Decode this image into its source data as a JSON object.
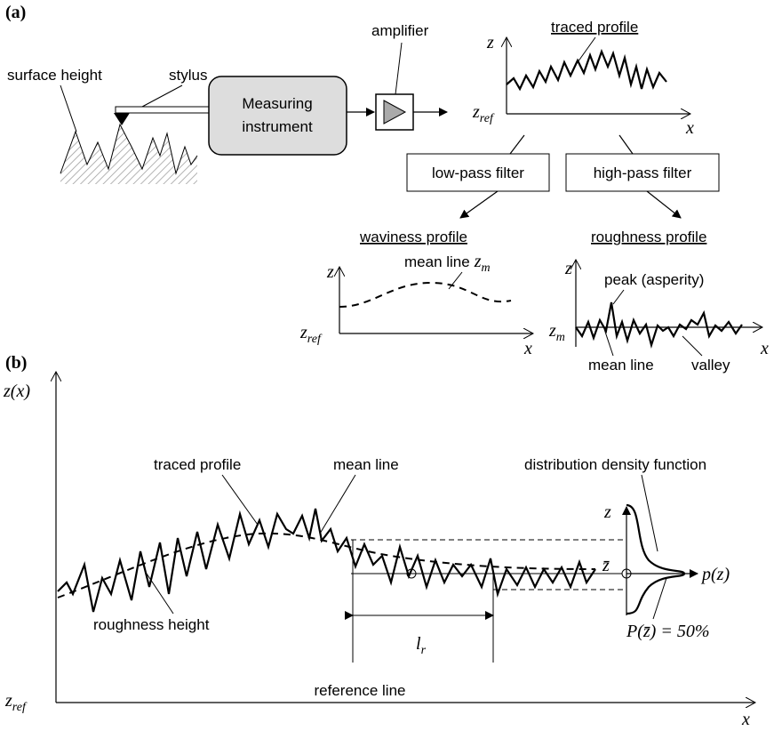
{
  "panel_a": {
    "label": "(a)",
    "surface_height": "surface height",
    "stylus": "stylus",
    "instrument": [
      "Measuring",
      "instrument"
    ],
    "amplifier": "amplifier",
    "traced_plot": {
      "title": "traced profile",
      "y_axis": "z",
      "origin": {
        "base": "z",
        "sub": "ref"
      },
      "x_axis": "x"
    },
    "low_pass": "low-pass filter",
    "high_pass": "high-pass filter",
    "waviness_plot": {
      "title": "waviness profile",
      "y_axis": "z",
      "origin": {
        "base": "z",
        "sub": "ref"
      },
      "x_axis": "x",
      "mean_line": {
        "text": "mean line",
        "base": "z",
        "sub": "m"
      }
    },
    "roughness_plot": {
      "title": "roughness profile",
      "y_axis": "z",
      "mean_level": {
        "base": "z",
        "sub": "m"
      },
      "x_axis": "x",
      "peak": "peak (asperity)",
      "mean_line": "mean line",
      "valley": "valley"
    }
  },
  "panel_b": {
    "label": "(b)",
    "y_axis": "z(x)",
    "origin": {
      "base": "z",
      "sub": "ref"
    },
    "x_axis": "x",
    "reference_line": "reference line",
    "traced_profile": "traced profile",
    "mean_line": "mean line",
    "roughness_height": "roughness height",
    "density_function": "distribution density function",
    "density_axis": "z",
    "mean_value": "z̄",
    "density": "p(z)",
    "length": {
      "base": "l",
      "sub": "r"
    },
    "probability": "P(z̄) = 50%"
  }
}
